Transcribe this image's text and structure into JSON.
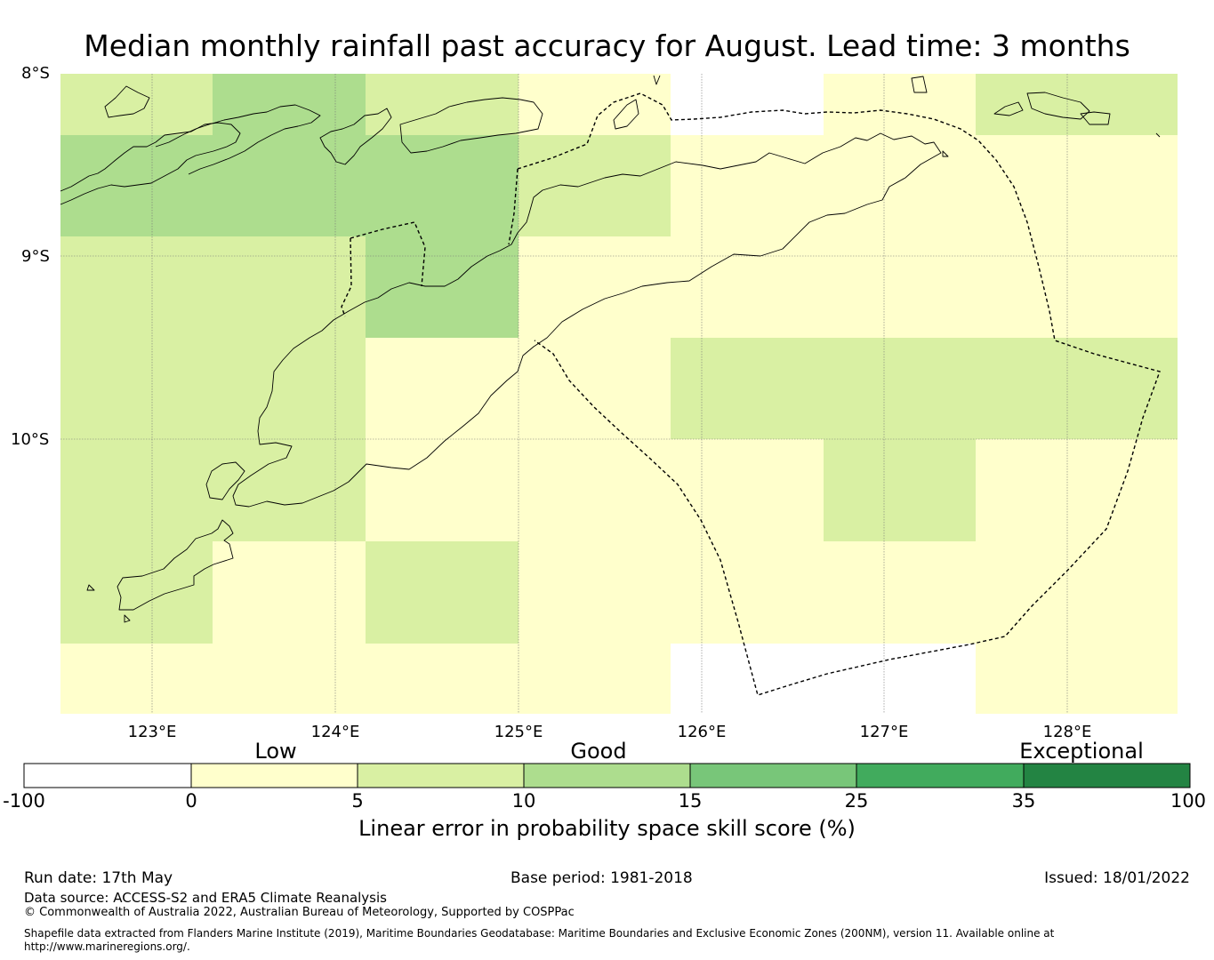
{
  "title": "Median monthly rainfall past accuracy for August. Lead time: 3 months",
  "map": {
    "lat_labels": [
      "8°S",
      "9°S",
      "10°S"
    ],
    "lon_labels": [
      "123°E",
      "124°E",
      "125°E",
      "126°E",
      "127°E",
      "128°E"
    ],
    "grid_cells_skill_pct": {
      "description_rows_north_to_south": true,
      "rows": [
        {
          "lat_band": "8.0–8.35°S",
          "cells": [
            "5–10",
            "10–15",
            "5–10",
            "0–5",
            "no data",
            "0–5",
            "5–10"
          ]
        },
        {
          "lat_band": "8.35–8.9°S",
          "cells": [
            "10–15",
            "10–15",
            "10–15",
            "5–10",
            "0–5",
            "0–5",
            "0–5"
          ]
        },
        {
          "lat_band": "8.9–9.45°S",
          "cells": [
            "5–10",
            "5–10",
            "10–15",
            "0–5",
            "0–5",
            "0–5",
            "0–5"
          ]
        },
        {
          "lat_band": "9.45–10.0°S",
          "cells": [
            "5–10",
            "5–10",
            "0–5",
            "0–5",
            "5–10",
            "5–10",
            "5–10"
          ]
        },
        {
          "lat_band": "10.0–10.55°S",
          "cells": [
            "5–10",
            "5–10",
            "0–5",
            "0–5",
            "0–5",
            "5–10",
            "0–5"
          ]
        },
        {
          "lat_band": "10.55–11.1°S",
          "cells": [
            "5–10",
            "0–5",
            "5–10",
            "0–5",
            "0–5",
            "0–5",
            "0–5"
          ]
        },
        {
          "lat_band": "11.1–11.5°S",
          "cells": [
            "0–5",
            "0–5",
            "0–5",
            "0–5",
            "no data",
            "no data",
            "0–5"
          ]
        }
      ]
    }
  },
  "colorbar": {
    "categories": [
      "Low",
      "Good",
      "Exceptional"
    ],
    "ticks": [
      "-100",
      "0",
      "5",
      "10",
      "15",
      "25",
      "35",
      "100"
    ],
    "colors": [
      "#ffffff",
      "#ffffcc",
      "#d9f0a3",
      "#addd8e",
      "#78c679",
      "#41ab5d",
      "#238443"
    ],
    "title": "Linear error in probability space skill score (%)"
  },
  "footer": {
    "run_date": "Run date: 17th May",
    "base_period": "Base period: 1981-2018",
    "issued": "Issued: 18/01/2022",
    "data_source": "Data source: ACCESS-S2 and ERA5 Climate Reanalysis",
    "copyright": "© Commonwealth of Australia 2022, Australian Bureau of Meteorology, Supported by COSPPac",
    "shapefile": "Shapefile data extracted from Flanders Marine Institute (2019), Maritime Boundaries Geodatabase: Maritime Boundaries and Exclusive Economic Zones (200NM), version 11. Available online at http://www.marineregions.org/."
  }
}
